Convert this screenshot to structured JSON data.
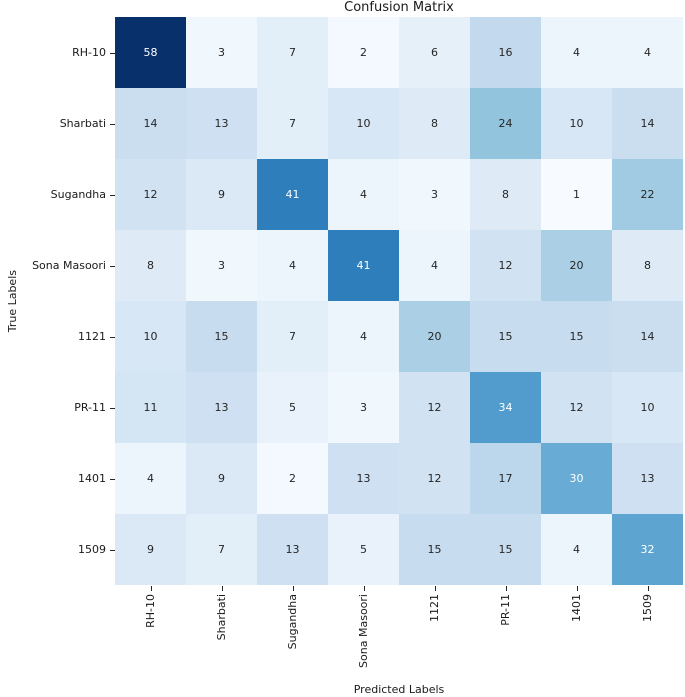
{
  "figure": {
    "title": "Confusion Matrix",
    "xlabel": "Predicted Labels",
    "ylabel": "True Labels"
  },
  "chart_data": {
    "type": "heatmap",
    "title": "Confusion Matrix",
    "xlabel": "Predicted Labels",
    "ylabel": "True Labels",
    "x_tick_labels": [
      "RH-10",
      "Sharbati",
      "Sugandha",
      "Sona Masoori",
      "1121",
      "PR-11",
      "1401",
      "1509"
    ],
    "y_tick_labels": [
      "RH-10",
      "Sharbati",
      "Sugandha",
      "Sona Masoori",
      "1121",
      "PR-11",
      "1401",
      "1509"
    ],
    "matrix": [
      [
        58,
        3,
        7,
        2,
        6,
        16,
        4,
        4
      ],
      [
        14,
        13,
        7,
        10,
        8,
        24,
        10,
        14
      ],
      [
        12,
        9,
        41,
        4,
        3,
        8,
        1,
        22
      ],
      [
        8,
        3,
        4,
        41,
        4,
        12,
        20,
        8
      ],
      [
        10,
        15,
        7,
        4,
        20,
        15,
        15,
        14
      ],
      [
        11,
        13,
        5,
        3,
        12,
        34,
        12,
        10
      ],
      [
        4,
        9,
        2,
        13,
        12,
        17,
        30,
        13
      ],
      [
        9,
        7,
        13,
        5,
        15,
        15,
        4,
        32
      ]
    ],
    "vmin": 1,
    "vmax": 58,
    "colormap": "Blues",
    "colormap_stops": [
      "#f7fbff",
      "#deebf7",
      "#c6dbef",
      "#9ecae1",
      "#6baed6",
      "#4292c6",
      "#2171b5",
      "#08519c",
      "#08306b"
    ],
    "annotation_text_dark": "#262626",
    "annotation_text_light": "#ffffff",
    "luminance_threshold": 0.408,
    "grid": false,
    "legend": "none",
    "colorbar": false
  }
}
